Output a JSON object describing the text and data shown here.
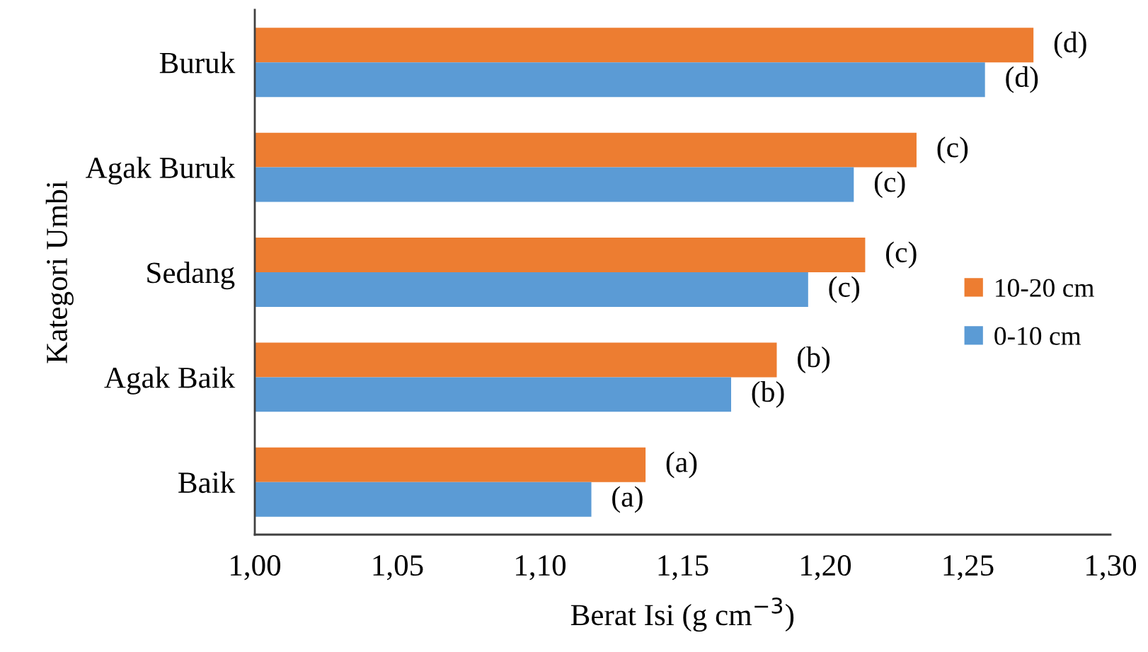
{
  "chart_data": {
    "type": "bar",
    "orientation": "horizontal",
    "categories": [
      "Buruk",
      "Agak Buruk",
      "Sedang",
      "Agak Baik",
      "Baik"
    ],
    "series": [
      {
        "name": "10-20 cm",
        "color": "#ed7d31",
        "values": [
          1.273,
          1.232,
          1.214,
          1.183,
          1.137
        ],
        "value_labels": [
          "(d)",
          "(c)",
          "(c)",
          "(b)",
          "(a)"
        ]
      },
      {
        "name": "0-10 cm",
        "color": "#5b9bd5",
        "values": [
          1.256,
          1.21,
          1.194,
          1.167,
          1.118
        ],
        "value_labels": [
          "(d)",
          "(c)",
          "(c)",
          "(b)",
          "(a)"
        ]
      }
    ],
    "xlim": [
      1.0,
      1.3
    ],
    "xticks": [
      {
        "value": 1.0,
        "label": "1,00"
      },
      {
        "value": 1.05,
        "label": "1,05"
      },
      {
        "value": 1.1,
        "label": "1,10"
      },
      {
        "value": 1.15,
        "label": "1,15"
      },
      {
        "value": 1.2,
        "label": "1,20"
      },
      {
        "value": 1.25,
        "label": "1,25"
      },
      {
        "value": 1.3,
        "label": "1,30"
      }
    ],
    "xlabel": "Berat Isi (g cm$^{−3}$)",
    "ylabel": "Kategori Umbi",
    "legend": "right"
  }
}
